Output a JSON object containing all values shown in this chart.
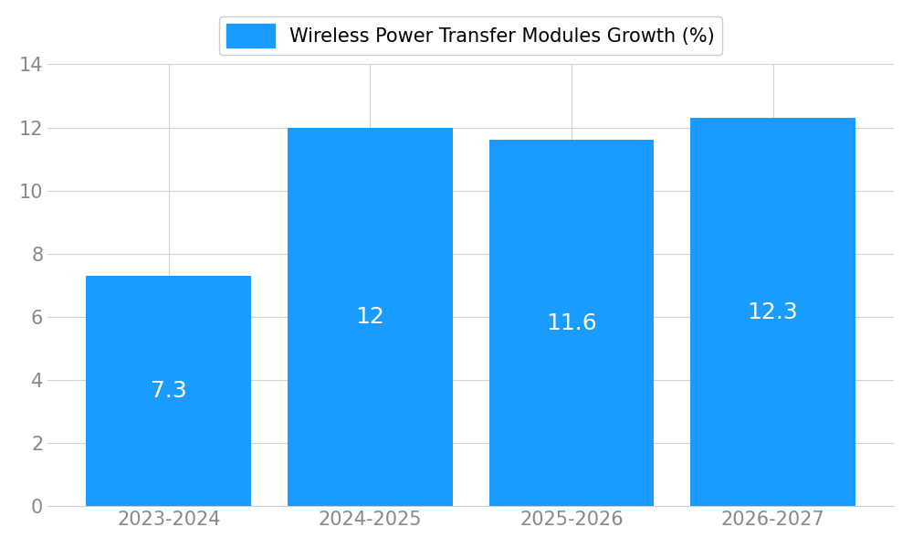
{
  "categories": [
    "2023-2024",
    "2024-2025",
    "2025-2026",
    "2026-2027"
  ],
  "values": [
    7.3,
    12,
    11.6,
    12.3
  ],
  "value_labels": [
    "7.3",
    "12",
    "11.6",
    "12.3"
  ],
  "bar_color": "#1a9cff",
  "label_color": "#ffffff",
  "legend_label": "Wireless Power Transfer Modules Growth (%)",
  "ylim": [
    0,
    14
  ],
  "yticks": [
    0,
    2,
    4,
    6,
    8,
    10,
    12,
    14
  ],
  "bar_width": 0.82,
  "label_fontsize": 18,
  "tick_fontsize": 15,
  "legend_fontsize": 15,
  "background_color": "#ffffff",
  "grid_color": "#d0d0d0",
  "tick_color": "#888888"
}
